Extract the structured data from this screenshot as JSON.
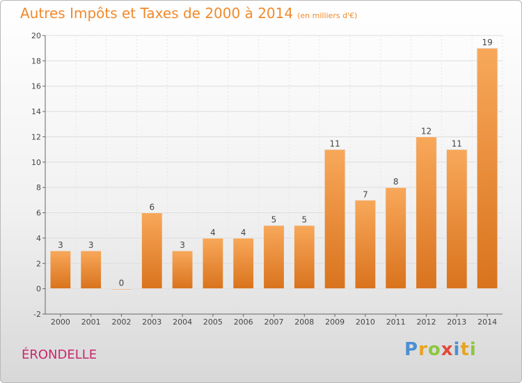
{
  "title": "Autres Impôts et Taxes de 2000 à 2014",
  "title_unit": "(en milliers d'€)",
  "commune": "ÉRONDELLE",
  "logo": {
    "letters": [
      "P",
      "r",
      "o",
      "x",
      "i",
      "t",
      "i"
    ],
    "colors": [
      "#4b8fd3",
      "#e6a520",
      "#8dc63f",
      "#e04a3a",
      "#4b8fd3",
      "#e6a520",
      "#8dc63f"
    ]
  },
  "colors": {
    "title": "#f08a2c",
    "bar_top": "#f8a85a",
    "bar_bottom": "#d9731d",
    "commune": "#c8276a"
  },
  "chart_data": {
    "type": "bar",
    "categories": [
      "2000",
      "2001",
      "2002",
      "2003",
      "2004",
      "2005",
      "2006",
      "2007",
      "2008",
      "2009",
      "2010",
      "2011",
      "2012",
      "2013",
      "2014"
    ],
    "values": [
      3,
      3,
      0,
      6,
      3,
      4,
      4,
      5,
      5,
      11,
      7,
      8,
      12,
      11,
      19
    ],
    "ylim": [
      -2,
      20
    ],
    "yticks": [
      -2,
      0,
      2,
      4,
      6,
      8,
      10,
      12,
      14,
      16,
      18,
      20
    ],
    "grid": true
  }
}
